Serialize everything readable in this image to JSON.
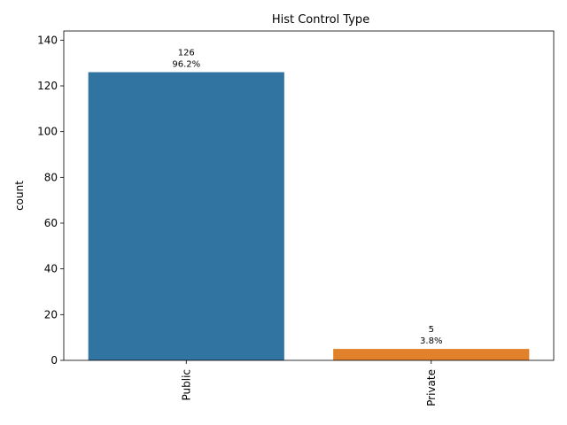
{
  "chart_data": {
    "type": "bar",
    "title": "Hist Control Type",
    "xlabel": "",
    "ylabel": "count",
    "categories": [
      "Public",
      "Private"
    ],
    "values": [
      126,
      5
    ],
    "bar_labels": [
      {
        "count": "126",
        "percent": "96.2%"
      },
      {
        "count": "5",
        "percent": "3.8%"
      }
    ],
    "colors": [
      "#3274a1",
      "#e1812c"
    ],
    "ylim": [
      0,
      144
    ],
    "yticks": [
      0,
      20,
      40,
      60,
      80,
      100,
      120,
      140
    ],
    "grid": false,
    "legend": "none"
  }
}
